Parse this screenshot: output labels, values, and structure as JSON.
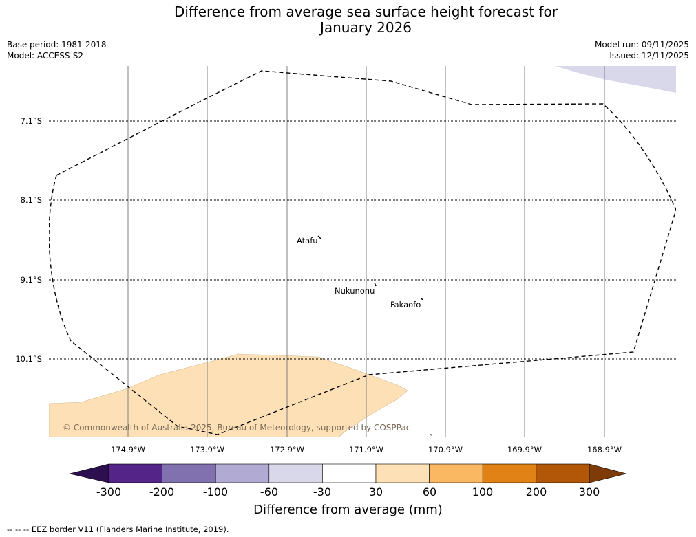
{
  "title_line1": "Difference from average sea surface height forecast for",
  "title_line2": "January 2026",
  "base_period": "Base period: 1981-2018",
  "model": "Model: ACCESS-S2",
  "model_run": "Model run: 09/11/2025",
  "issued": "Issued: 12/11/2025",
  "map": {
    "latitudes": [
      "7.1°S",
      "8.1°S",
      "9.1°S",
      "10.1°S"
    ],
    "longitudes": [
      "174.9°W",
      "173.9°W",
      "172.9°W",
      "171.9°W",
      "170.9°W",
      "169.9°W",
      "168.9°W"
    ],
    "places": [
      "Atafu",
      "Nukunonu",
      "Fakaofo"
    ],
    "copyright": "© Commonwealth of Australia 2025, Bureau of Meteorology, supported by COSPPac",
    "anomaly_colors": {
      "positive_30_60": "#fde0b6",
      "negative_60_30": "#d8d8ea"
    },
    "eez_line_color": "#000000"
  },
  "colorbar": {
    "title": "Difference from average (mm)",
    "ticks": [
      "-300",
      "-200",
      "-100",
      "-60",
      "-30",
      "30",
      "60",
      "100",
      "200",
      "300"
    ],
    "colors": [
      "#2d0f50",
      "#542488",
      "#8171ae",
      "#b1aad2",
      "#d8d8ea",
      "#ffffff",
      "#fde0b6",
      "#fbb862",
      "#e08215",
      "#b25707",
      "#7e3a07"
    ]
  },
  "footer_note": "--  --  -- EEZ border V11 (Flanders Marine Institute, 2019)."
}
